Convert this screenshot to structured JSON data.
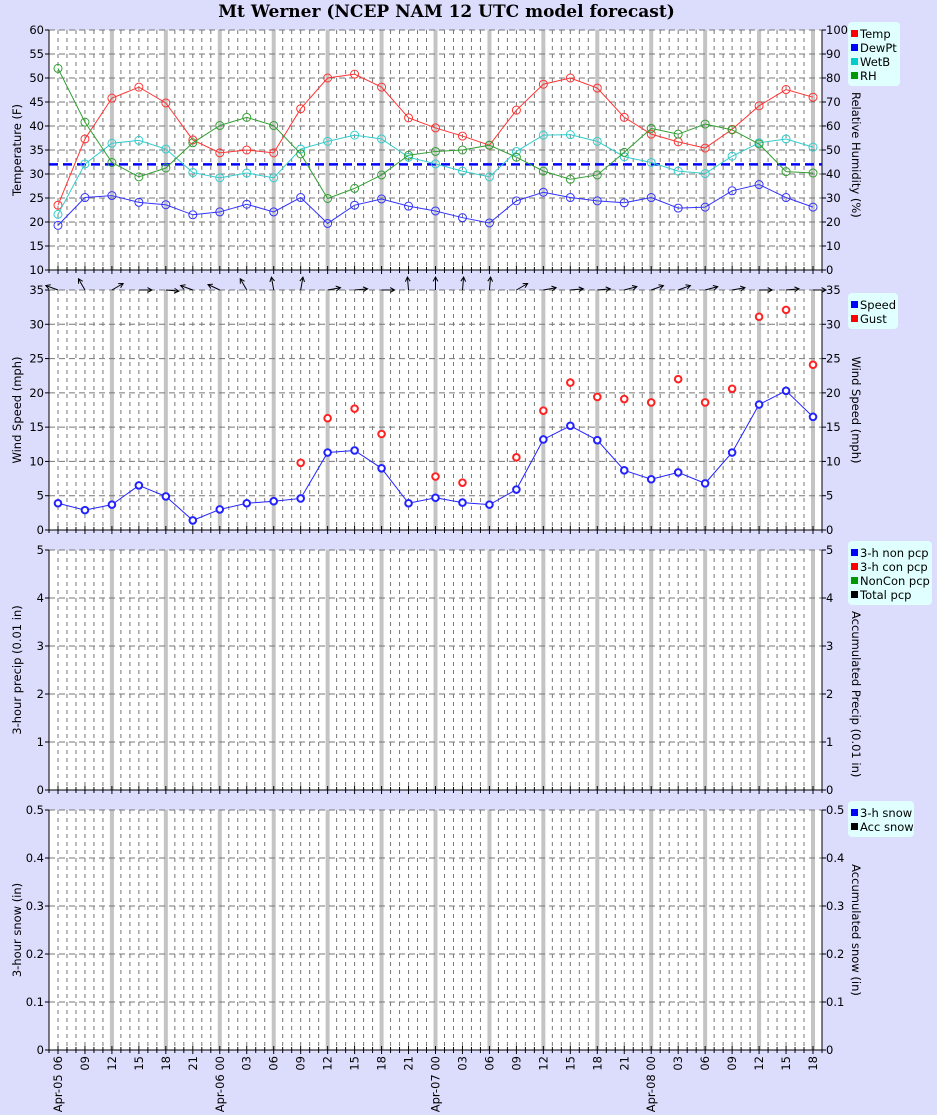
{
  "title": "Mt Werner (NCEP NAM 12 UTC model forecast)",
  "x_labels": [
    "Apr-05 06",
    "09",
    "12",
    "15",
    "18",
    "21",
    "Apr-06 00",
    "03",
    "06",
    "09",
    "12",
    "15",
    "18",
    "21",
    "Apr-07 00",
    "03",
    "06",
    "09",
    "12",
    "15",
    "18",
    "21",
    "Apr-08 00",
    "03",
    "06",
    "09",
    "12",
    "15",
    "18"
  ],
  "chart_data": [
    {
      "type": "line",
      "ylabel": "Temperature (F)",
      "y2label": "Relative Humidity (%)",
      "ylim": [
        10,
        60
      ],
      "yticks": [
        10,
        15,
        20,
        25,
        30,
        35,
        40,
        45,
        50,
        55,
        60
      ],
      "y2lim": [
        0,
        100
      ],
      "y2ticks": [
        0,
        10,
        20,
        30,
        40,
        50,
        60,
        70,
        80,
        90,
        100
      ],
      "reference_line": {
        "value": 32,
        "color": "#0000ff"
      },
      "legend": "right",
      "series": [
        {
          "name": "Temp",
          "axis": "left",
          "color": "#ff3333",
          "legend_color": "#ff0000",
          "values": [
            23.5,
            37.3,
            45.8,
            48.1,
            44.8,
            37.1,
            34.4,
            35.0,
            34.4,
            43.6,
            50.0,
            50.8,
            48.1,
            41.7,
            39.6,
            37.9,
            36.0,
            43.3,
            48.7,
            50.0,
            47.9,
            41.8,
            38.3,
            36.7,
            35.4,
            39.3,
            44.2,
            47.6,
            46.0
          ]
        },
        {
          "name": "DewPt",
          "axis": "left",
          "color": "#3333ff",
          "legend_color": "#0000ff",
          "values": [
            19.3,
            25.1,
            25.5,
            24.1,
            23.6,
            21.5,
            22.1,
            23.7,
            22.1,
            25.1,
            19.7,
            23.5,
            24.8,
            23.3,
            22.3,
            20.9,
            19.8,
            24.4,
            26.2,
            25.1,
            24.4,
            24.0,
            25.1,
            22.9,
            23.1,
            26.5,
            27.8,
            25.1,
            23.1
          ]
        },
        {
          "name": "WetB",
          "axis": "left",
          "color": "#33cccc",
          "legend_color": "#00cccc",
          "values": [
            21.6,
            32.1,
            36.4,
            37.0,
            35.2,
            30.3,
            29.2,
            30.2,
            29.2,
            35.2,
            36.8,
            38.1,
            37.3,
            33.5,
            32.1,
            30.6,
            29.4,
            34.7,
            38.1,
            38.2,
            36.8,
            33.6,
            32.4,
            30.6,
            30.1,
            33.7,
            36.5,
            37.3,
            35.6
          ]
        },
        {
          "name": "RH",
          "axis": "right",
          "color": "#33a033",
          "legend_color": "#009900",
          "values": [
            84,
            61.6,
            44.8,
            38.8,
            42.5,
            53,
            60.2,
            63.6,
            60.2,
            48.4,
            29.8,
            34,
            39.6,
            47.8,
            49.4,
            50,
            52,
            47,
            41.2,
            37.8,
            39.6,
            49,
            59,
            56.6,
            60.8,
            58.4,
            52.5,
            41,
            40.4
          ]
        }
      ]
    },
    {
      "type": "line",
      "ylabel": "Wind Speed (mph)",
      "y2label": "Wind Speed (mph)",
      "ylim": [
        0,
        35
      ],
      "yticks": [
        0,
        5,
        10,
        15,
        20,
        25,
        30,
        35
      ],
      "y2lim": [
        0,
        35
      ],
      "y2ticks": [
        0,
        5,
        10,
        15,
        20,
        25,
        30,
        35
      ],
      "legend": "right",
      "wind_direction_arrow_deg": [
        290,
        330,
        60,
        90,
        95,
        290,
        295,
        330,
        350,
        10,
        80,
        85,
        90,
        355,
        0,
        5,
        5,
        60,
        80,
        85,
        85,
        75,
        70,
        70,
        75,
        80,
        90,
        85,
        90
      ],
      "series": [
        {
          "name": "Speed",
          "color": "#2222ff",
          "legend_color": "#0000ff",
          "line": true,
          "values": [
            3.9,
            2.9,
            3.7,
            6.5,
            4.9,
            1.4,
            3.0,
            3.9,
            4.2,
            4.6,
            11.3,
            11.6,
            9.0,
            3.9,
            4.7,
            4.0,
            3.7,
            5.9,
            13.2,
            15.2,
            13.1,
            8.7,
            7.4,
            8.4,
            6.8,
            11.3,
            18.3,
            20.3,
            16.5
          ]
        },
        {
          "name": "Gust",
          "color": "#ff2222",
          "legend_color": "#ff0000",
          "line": false,
          "values": [
            null,
            null,
            null,
            null,
            null,
            null,
            null,
            null,
            null,
            9.8,
            16.3,
            17.7,
            14.0,
            null,
            7.8,
            6.9,
            null,
            10.6,
            17.4,
            21.5,
            19.4,
            19.1,
            18.6,
            22.0,
            18.6,
            20.6,
            31.1,
            32.1,
            24.1
          ]
        }
      ]
    },
    {
      "type": "bar",
      "ylabel": "3-hour precip (0.01 in)",
      "y2label": "Accumulated Precip (0.01 in)",
      "ylim": [
        0,
        5
      ],
      "yticks": [
        0,
        1,
        2,
        3,
        4,
        5
      ],
      "y2lim": [
        0,
        5
      ],
      "y2ticks": [
        0,
        1,
        2,
        3,
        4,
        5
      ],
      "legend": "right",
      "series": [
        {
          "name": "3-h non pcp",
          "legend_color": "#0000ff",
          "values": []
        },
        {
          "name": "3-h con pcp",
          "legend_color": "#ff0000",
          "values": []
        },
        {
          "name": "NonCon pcp",
          "legend_color": "#009900",
          "values": []
        },
        {
          "name": "Total pcp",
          "legend_color": "#000000",
          "values": []
        }
      ]
    },
    {
      "type": "bar",
      "ylabel": "3-hour snow (in)",
      "y2label": "Accumulated snow (in)",
      "ylim": [
        0,
        0.5
      ],
      "yticks": [
        "0",
        "0.1",
        "0.2",
        "0.3",
        "0.4",
        "0.5"
      ],
      "y2lim": [
        0,
        0.5
      ],
      "y2ticks": [
        "0",
        "0.1",
        "0.2",
        "0.3",
        "0.4",
        "0.5"
      ],
      "legend": "right",
      "series": [
        {
          "name": "3-h snow",
          "legend_color": "#0000ff",
          "values": []
        },
        {
          "name": "Acc snow",
          "legend_color": "#000000",
          "values": []
        }
      ]
    }
  ]
}
